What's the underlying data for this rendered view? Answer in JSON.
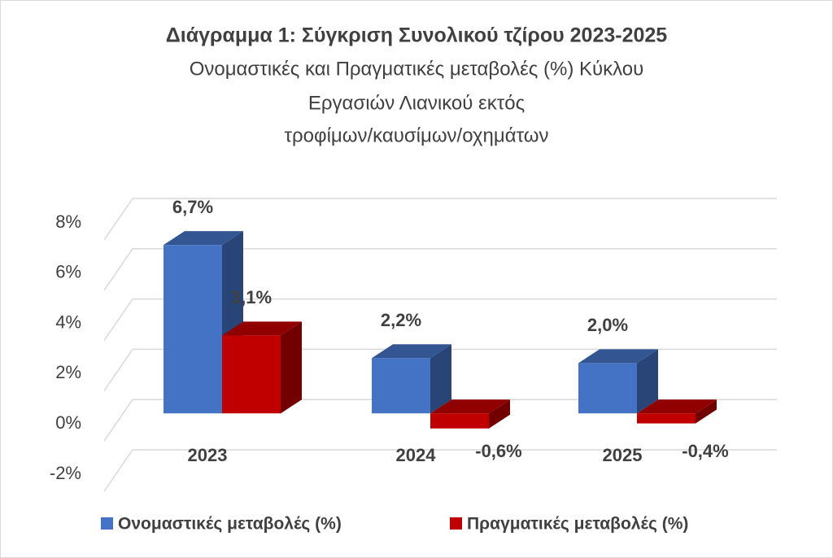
{
  "chart_data": {
    "type": "bar3d",
    "title": "Διάγραμμα 1: Σύγκριση Συνολικού τζίρου 2023-2025",
    "subtitle": [
      "Ονομαστικές και Πραγματικές μεταβολές (%) Κύκλου",
      "Εργασιών Λιανικού εκτός",
      "τροφίμων/καυσίμων/οχημάτων"
    ],
    "categories": [
      "2023",
      "2024",
      "2025"
    ],
    "series": [
      {
        "name": "Ονομαστικές μεταβολές (%)",
        "color": "#4472c4",
        "values": [
          6.7,
          2.2,
          2.0
        ],
        "value_labels": [
          "6,7%",
          "2,2%",
          "2,0%"
        ]
      },
      {
        "name": "Πραγματικές μεταβολές (%)",
        "color": "#c00000",
        "values": [
          3.1,
          -0.6,
          -0.4
        ],
        "value_labels": [
          "3,1%",
          "-0,6%",
          "-0,4%"
        ]
      }
    ],
    "ylim": [
      -2,
      8
    ],
    "yticks": [
      {
        "value": -2,
        "label": "-2%"
      },
      {
        "value": 0,
        "label": "0%"
      },
      {
        "value": 2,
        "label": "2%"
      },
      {
        "value": 4,
        "label": "4%"
      },
      {
        "value": 6,
        "label": "6%"
      },
      {
        "value": 8,
        "label": "8%"
      }
    ],
    "grid": true,
    "legend": "bottom"
  }
}
